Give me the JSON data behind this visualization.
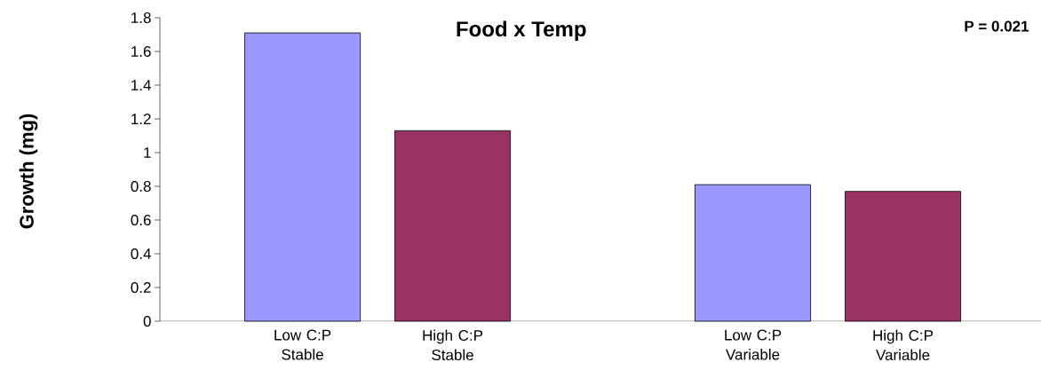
{
  "chart_data": {
    "type": "bar",
    "title": "Food x Temp",
    "ylabel": "Growth (mg)",
    "categories": [
      "Low C:P Stable",
      "High C:P Stable",
      null,
      "Low C:P Variable",
      "High C:P Variable"
    ],
    "values": [
      1.71,
      1.13,
      null,
      0.81,
      0.77
    ],
    "colors": [
      "#9999ff",
      "#993366",
      null,
      "#9999ff",
      "#993366"
    ],
    "ylim": [
      0,
      1.8
    ],
    "yticks": [
      0,
      0.2,
      0.4,
      0.6,
      0.8,
      1,
      1.2,
      1.4,
      1.6,
      1.8
    ],
    "annotations": [
      "P = 0.021"
    ]
  }
}
